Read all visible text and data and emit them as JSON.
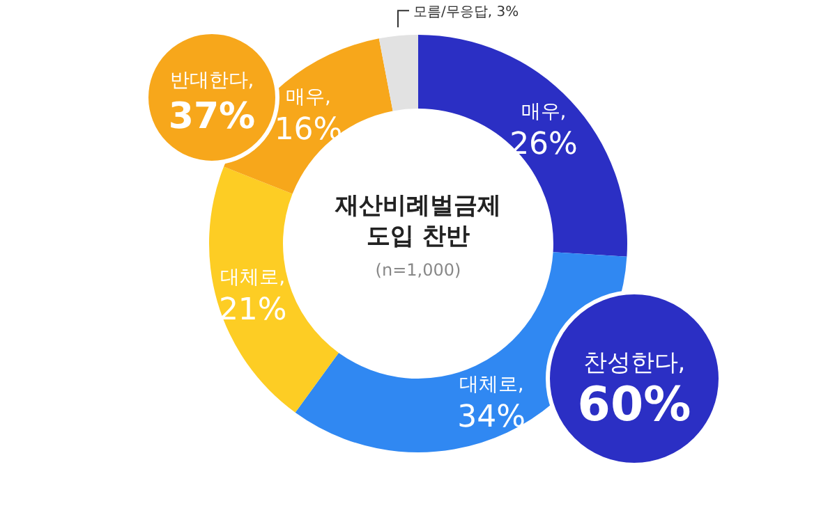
{
  "chart_data": {
    "type": "donut",
    "title": "재산비례벌금제 도입 찬반",
    "subtitle": "(n=1,000)",
    "categories": [
      null,
      null,
      null,
      null,
      null
    ],
    "values": [
      26,
      34,
      21,
      16,
      3
    ],
    "colors": [
      "#2b2fc4",
      "#3088f2",
      "#fdcd24",
      "#f7a71b",
      "#e2e2e2"
    ],
    "value_labels": [
      "매우, 26%",
      "대체로, 34%",
      "대체로, 21%",
      "매우, 16%",
      "모름/무응답, 3%"
    ],
    "annotations": [
      "찬성한다, 60%",
      "반대한다, 37%"
    ]
  }
}
